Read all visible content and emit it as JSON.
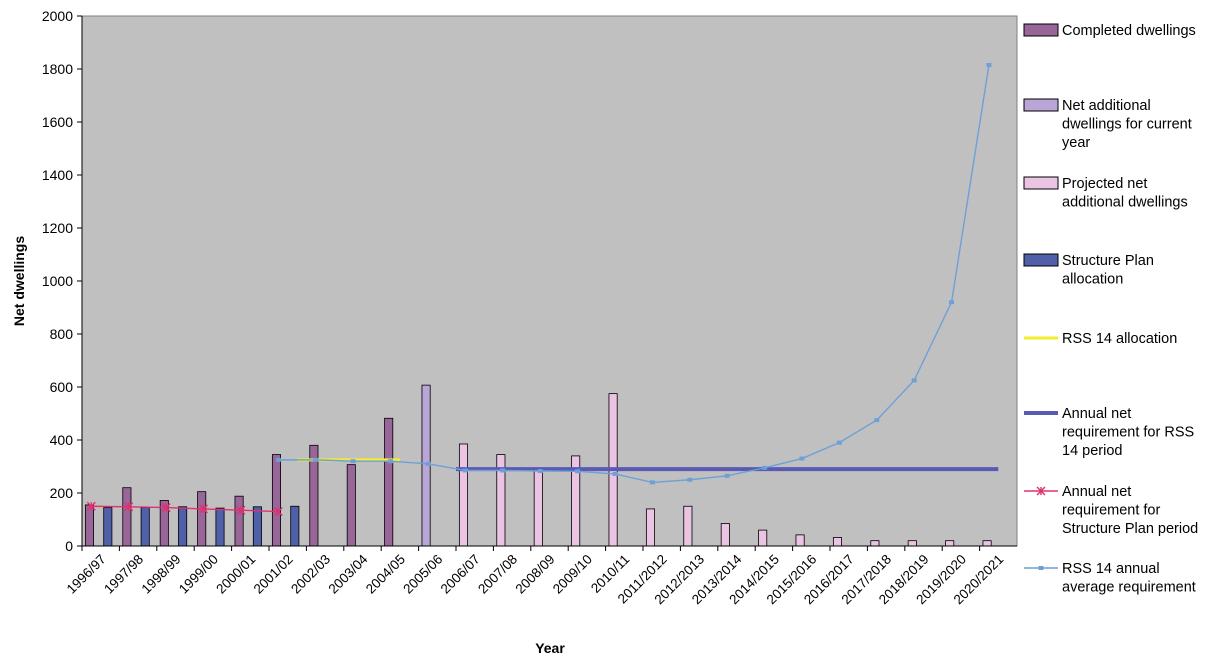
{
  "chart_data": {
    "type": "bar",
    "xlabel": "Year",
    "ylabel": "Net dwellings",
    "ylim": [
      0,
      2000
    ],
    "ytick_step": 200,
    "grid": false,
    "plot_background": "#c0c0c0",
    "legend_position": "right",
    "categories": [
      "1996/97",
      "1997/98",
      "1998/99",
      "1999/00",
      "2000/01",
      "2001/02",
      "2002/03",
      "2003/04",
      "2004/05",
      "2005/06",
      "2006/07",
      "2007/08",
      "2008/09",
      "2009/10",
      "2010/11",
      "2011/2012",
      "2012/2013",
      "2013/2014",
      "2014/2015",
      "2015/2016",
      "2016/2017",
      "2017/2018",
      "2018/2019",
      "2019/2020",
      "2020/2021"
    ],
    "series": [
      {
        "name": "Completed dwellings",
        "kind": "bar",
        "color": "#996699",
        "values": [
          155,
          220,
          172,
          205,
          188,
          345,
          380,
          307,
          482,
          null,
          null,
          null,
          null,
          null,
          null,
          null,
          null,
          null,
          null,
          null,
          null,
          null,
          null,
          null,
          null
        ]
      },
      {
        "name": "Net additional dwellings for current year",
        "kind": "bar",
        "color": "#b9a6d6",
        "values": [
          null,
          null,
          null,
          null,
          null,
          null,
          null,
          null,
          null,
          607,
          null,
          null,
          null,
          null,
          null,
          null,
          null,
          null,
          null,
          null,
          null,
          null,
          null,
          null,
          null
        ]
      },
      {
        "name": "Projected net additional dwellings",
        "kind": "bar",
        "color": "#ebc3e3",
        "values": [
          null,
          null,
          null,
          null,
          null,
          null,
          null,
          null,
          null,
          null,
          385,
          345,
          283,
          340,
          575,
          140,
          150,
          85,
          60,
          42,
          32,
          20,
          20,
          20,
          20
        ]
      },
      {
        "name": "Structure Plan allocation",
        "kind": "bar",
        "color": "#4f5fa8",
        "values": [
          145,
          145,
          148,
          143,
          148,
          150,
          null,
          null,
          null,
          null,
          null,
          null,
          null,
          null,
          null,
          null,
          null,
          null,
          null,
          null,
          null,
          null,
          null,
          null,
          null
        ]
      },
      {
        "name": "RSS 14 allocation",
        "kind": "line",
        "color": "#f2ee2a",
        "x_start": 5.75,
        "x_end": 8.5,
        "value": 325
      },
      {
        "name": "Annual net requirement for RSS 14 period",
        "kind": "line",
        "color": "#5a5ab4",
        "x_start": 10.0,
        "x_end": 24.5,
        "value": 290
      },
      {
        "name": "Annual net requirement for Structure Plan period",
        "kind": "line-markers",
        "color": "#e0306e",
        "x": [
          0.25,
          1.25,
          2.25,
          3.25,
          4.25,
          5.25
        ],
        "values": [
          150,
          148,
          145,
          140,
          135,
          130
        ]
      },
      {
        "name": "RSS 14 annual average requirement",
        "kind": "line-markers",
        "color": "#6ea0d8",
        "x": [
          5.25,
          6.25,
          7.25,
          8.25,
          9.25,
          10.25,
          11.25,
          12.25,
          13.25,
          14.25,
          15.25,
          16.25,
          17.25,
          18.25,
          19.25,
          20.25,
          21.25,
          22.25,
          23.25,
          24.25
        ],
        "values": [
          325,
          325,
          320,
          320,
          310,
          285,
          285,
          283,
          282,
          272,
          240,
          250,
          265,
          295,
          330,
          390,
          475,
          625,
          920,
          1815
        ]
      }
    ],
    "legend": [
      {
        "type": "swatch",
        "color": "#996699",
        "lines": [
          "Completed dwellings"
        ]
      },
      {
        "type": "swatch",
        "color": "#b9a6d6",
        "lines": [
          "Net additional",
          "dwellings for current",
          "year"
        ]
      },
      {
        "type": "swatch",
        "color": "#ebc3e3",
        "lines": [
          "Projected net",
          "additional dwellings"
        ]
      },
      {
        "type": "swatch",
        "color": "#4f5fa8",
        "lines": [
          "Structure Plan",
          "allocation"
        ]
      },
      {
        "type": "line",
        "color": "#f2ee2a",
        "lines": [
          "RSS 14 allocation"
        ]
      },
      {
        "type": "line",
        "color": "#5a5ab4",
        "lines": [
          "Annual net",
          "requirement for RSS",
          "14 period"
        ]
      },
      {
        "type": "line-star",
        "color": "#e0306e",
        "lines": [
          "Annual net",
          "requirement for",
          "Structure Plan period"
        ]
      },
      {
        "type": "line-square",
        "color": "#6ea0d8",
        "lines": [
          "RSS 14 annual",
          "average requirement"
        ]
      }
    ]
  }
}
